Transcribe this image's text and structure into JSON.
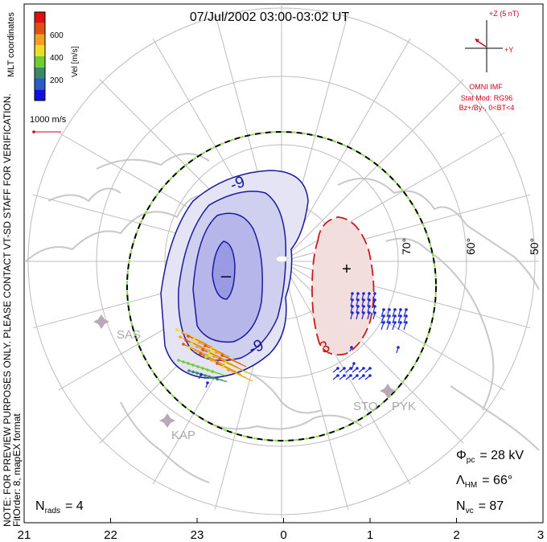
{
  "title": "07/Jul/2002 03:00-03:02 UT",
  "chart_data": {
    "type": "scatter",
    "colorbar": {
      "ticks": [
        200,
        400,
        600
      ],
      "label": "Vel [m/s]",
      "colors": [
        "#1010e0",
        "#2a5cc8",
        "#3a8a6a",
        "#70cc30",
        "#e8e020",
        "#f0a020",
        "#e05010",
        "#e01010"
      ]
    },
    "coordinates_label": "MLT coordinates",
    "reference_vector": "1000 m/s",
    "notice": "NOTE: FOR PREVIEW PURPOSES ONLY. PLEASE CONTACT VT-SD STAFF FOR VERIFICATION.",
    "fit_info": "FitOrder: 8, mapEX format",
    "latitude_labels": [
      "70°",
      "60°",
      "50°"
    ],
    "mlt_ticks": [
      "21",
      "22",
      "23",
      "0",
      "1",
      "2",
      "3"
    ],
    "contours": [
      {
        "label": "-9",
        "polarity": "negative",
        "center_marker": "–"
      },
      {
        "label": "-9",
        "polarity": "negative"
      },
      {
        "label": "3",
        "polarity": "positive",
        "center_marker": "+"
      }
    ],
    "stations": [
      "SAS",
      "KAP",
      "STO",
      "PYK"
    ],
    "imf": {
      "axis_z": "+Z (5 nT)",
      "axis_y": "+Y",
      "source": "OMNI IMF",
      "model": "Stat Mod: RG96",
      "condition": "Bz+/By-, 0<BT<4"
    },
    "stats": {
      "phi_pc_label": "Φ",
      "phi_pc_sub": "pc",
      "phi_pc_value": "= 28 kV",
      "lambda_label": "Λ",
      "lambda_sub": "HM",
      "lambda_value": "= 66°",
      "nvc_label": "N",
      "nvc_sub": "vc",
      "nvc_value": "= 87",
      "nrads_label": "N",
      "nrads_sub": "rads",
      "nrads_value": "= 4"
    }
  }
}
